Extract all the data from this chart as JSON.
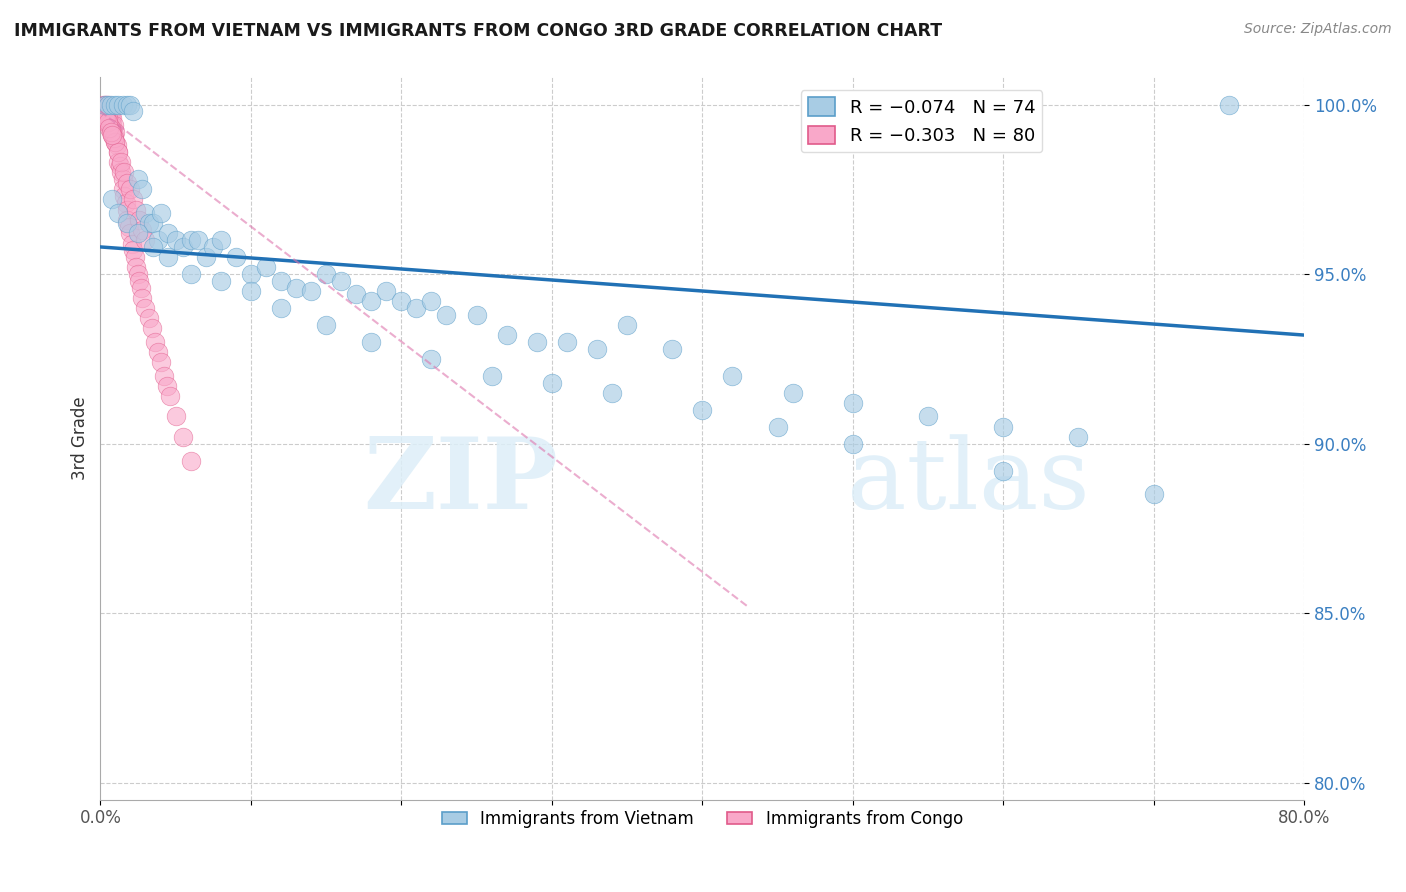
{
  "title": "IMMIGRANTS FROM VIETNAM VS IMMIGRANTS FROM CONGO 3RD GRADE CORRELATION CHART",
  "source": "Source: ZipAtlas.com",
  "ylabel": "3rd Grade",
  "xlim": [
    0.0,
    0.8
  ],
  "ylim": [
    0.795,
    1.008
  ],
  "yticks": [
    0.8,
    0.85,
    0.9,
    0.95,
    1.0
  ],
  "ytick_labels": [
    "80.0%",
    "85.0%",
    "90.0%",
    "95.0%",
    "100.0%"
  ],
  "xticks": [
    0.0,
    0.1,
    0.2,
    0.3,
    0.4,
    0.5,
    0.6,
    0.7,
    0.8
  ],
  "xtick_labels": [
    "0.0%",
    "",
    "",
    "",
    "",
    "",
    "",
    "",
    "80.0%"
  ],
  "watermark_line1": "ZIP",
  "watermark_line2": "atlas",
  "vietnam_color": "#a8cce4",
  "vietnam_edge_color": "#5b9ec9",
  "congo_color": "#f9a8c9",
  "congo_edge_color": "#e05a8a",
  "vietnam_trendline_color": "#2171b5",
  "congo_trendline_color": "#de77ae",
  "vietnam_scatter_x": [
    0.003,
    0.005,
    0.007,
    0.01,
    0.012,
    0.015,
    0.018,
    0.02,
    0.022,
    0.025,
    0.028,
    0.03,
    0.032,
    0.035,
    0.038,
    0.04,
    0.045,
    0.05,
    0.055,
    0.06,
    0.065,
    0.07,
    0.075,
    0.08,
    0.09,
    0.1,
    0.11,
    0.12,
    0.13,
    0.14,
    0.15,
    0.16,
    0.17,
    0.18,
    0.19,
    0.2,
    0.21,
    0.22,
    0.23,
    0.25,
    0.27,
    0.29,
    0.31,
    0.33,
    0.35,
    0.38,
    0.42,
    0.46,
    0.5,
    0.55,
    0.6,
    0.65,
    0.75,
    0.008,
    0.012,
    0.018,
    0.025,
    0.035,
    0.045,
    0.06,
    0.08,
    0.1,
    0.12,
    0.15,
    0.18,
    0.22,
    0.26,
    0.3,
    0.34,
    0.4,
    0.45,
    0.5,
    0.6,
    0.7
  ],
  "vietnam_scatter_y": [
    1.0,
    1.0,
    1.0,
    1.0,
    1.0,
    1.0,
    1.0,
    1.0,
    0.998,
    0.978,
    0.975,
    0.968,
    0.965,
    0.965,
    0.96,
    0.968,
    0.962,
    0.96,
    0.958,
    0.96,
    0.96,
    0.955,
    0.958,
    0.96,
    0.955,
    0.95,
    0.952,
    0.948,
    0.946,
    0.945,
    0.95,
    0.948,
    0.944,
    0.942,
    0.945,
    0.942,
    0.94,
    0.942,
    0.938,
    0.938,
    0.932,
    0.93,
    0.93,
    0.928,
    0.935,
    0.928,
    0.92,
    0.915,
    0.912,
    0.908,
    0.905,
    0.902,
    1.0,
    0.972,
    0.968,
    0.965,
    0.962,
    0.958,
    0.955,
    0.95,
    0.948,
    0.945,
    0.94,
    0.935,
    0.93,
    0.925,
    0.92,
    0.918,
    0.915,
    0.91,
    0.905,
    0.9,
    0.892,
    0.885
  ],
  "congo_scatter_x": [
    0.002,
    0.002,
    0.003,
    0.003,
    0.003,
    0.004,
    0.004,
    0.004,
    0.005,
    0.005,
    0.005,
    0.006,
    0.006,
    0.007,
    0.007,
    0.007,
    0.008,
    0.008,
    0.008,
    0.009,
    0.009,
    0.01,
    0.01,
    0.011,
    0.012,
    0.012,
    0.013,
    0.014,
    0.015,
    0.015,
    0.016,
    0.017,
    0.018,
    0.018,
    0.019,
    0.02,
    0.021,
    0.022,
    0.023,
    0.024,
    0.025,
    0.026,
    0.027,
    0.028,
    0.03,
    0.032,
    0.034,
    0.036,
    0.038,
    0.04,
    0.042,
    0.044,
    0.046,
    0.05,
    0.055,
    0.06,
    0.003,
    0.004,
    0.005,
    0.006,
    0.007,
    0.008,
    0.009,
    0.01,
    0.012,
    0.014,
    0.016,
    0.018,
    0.02,
    0.022,
    0.024,
    0.026,
    0.028,
    0.03,
    0.003,
    0.004,
    0.005,
    0.006,
    0.007,
    0.008
  ],
  "congo_scatter_y": [
    1.0,
    0.998,
    1.0,
    0.998,
    0.996,
    1.0,
    0.998,
    0.995,
    1.0,
    0.998,
    0.995,
    0.998,
    0.995,
    0.998,
    0.996,
    0.993,
    0.996,
    0.994,
    0.991,
    0.994,
    0.991,
    0.992,
    0.989,
    0.988,
    0.986,
    0.983,
    0.982,
    0.98,
    0.978,
    0.975,
    0.973,
    0.971,
    0.969,
    0.966,
    0.964,
    0.962,
    0.959,
    0.957,
    0.955,
    0.952,
    0.95,
    0.948,
    0.946,
    0.943,
    0.94,
    0.937,
    0.934,
    0.93,
    0.927,
    0.924,
    0.92,
    0.917,
    0.914,
    0.908,
    0.902,
    0.895,
    0.999,
    0.997,
    0.996,
    0.994,
    0.993,
    0.992,
    0.99,
    0.989,
    0.986,
    0.983,
    0.98,
    0.977,
    0.975,
    0.972,
    0.969,
    0.966,
    0.963,
    0.96,
    0.997,
    0.996,
    0.995,
    0.993,
    0.992,
    0.991
  ],
  "vietnam_trend_x": [
    0.0,
    0.8
  ],
  "vietnam_trend_y": [
    0.958,
    0.932
  ],
  "congo_trend_x": [
    0.0,
    0.43
  ],
  "congo_trend_y": [
    0.998,
    0.852
  ]
}
